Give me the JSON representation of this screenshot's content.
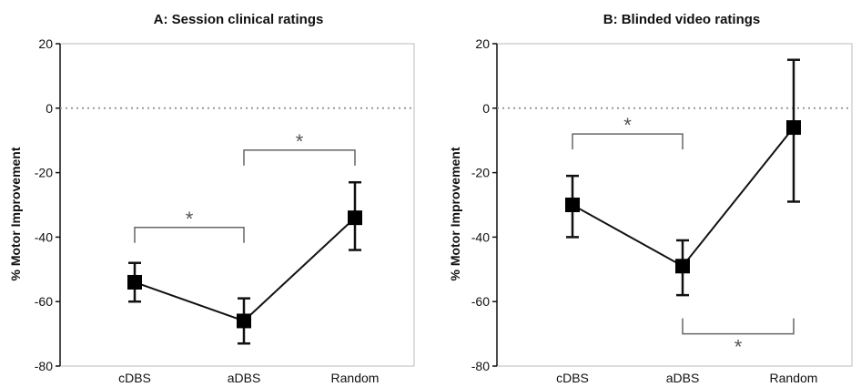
{
  "chart_data": [
    {
      "type": "line",
      "title": "A: Session clinical ratings",
      "xlabel": "",
      "ylabel": "% Motor Improvement",
      "categories": [
        "cDBS",
        "aDBS",
        "Random"
      ],
      "ylim": [
        -80,
        20
      ],
      "yticks": [
        20,
        0,
        -20,
        -40,
        -60,
        -80
      ],
      "reference_line": 0,
      "series": [
        {
          "values": [
            -54,
            -66,
            -34
          ],
          "error_low": [
            -60,
            -73,
            -44
          ],
          "error_high": [
            -48,
            -59,
            -23
          ]
        }
      ],
      "significance": [
        {
          "from": "cDBS",
          "to": "aDBS",
          "label": "*",
          "level": -37,
          "ticks": "down"
        },
        {
          "from": "aDBS",
          "to": "Random",
          "label": "*",
          "level": -13,
          "ticks": "down"
        }
      ]
    },
    {
      "type": "line",
      "title": "B: Blinded video ratings",
      "xlabel": "",
      "ylabel": "% Motor Improvement",
      "categories": [
        "cDBS",
        "aDBS",
        "Random"
      ],
      "ylim": [
        -80,
        20
      ],
      "yticks": [
        20,
        0,
        -20,
        -40,
        -60,
        -80
      ],
      "reference_line": 0,
      "series": [
        {
          "values": [
            -30,
            -49,
            -6
          ],
          "error_low": [
            -40,
            -58,
            -29
          ],
          "error_high": [
            -21,
            -41,
            15
          ]
        }
      ],
      "significance": [
        {
          "from": "cDBS",
          "to": "aDBS",
          "label": "*",
          "level": -8,
          "ticks": "down"
        },
        {
          "from": "aDBS",
          "to": "Random",
          "label": "*",
          "level": -70,
          "ticks": "up"
        }
      ]
    }
  ]
}
